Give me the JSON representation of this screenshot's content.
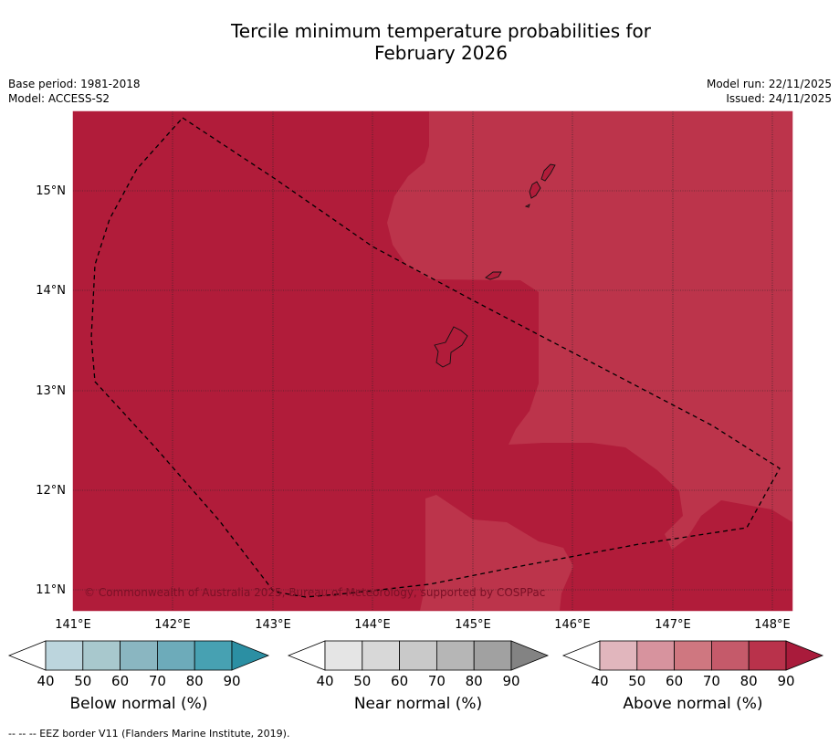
{
  "title": {
    "line1": "Tercile minimum temperature probabilities for",
    "line2": "February 2026"
  },
  "meta": {
    "base_period": "Base period: 1981-2018",
    "model": "Model: ACCESS-S2",
    "model_run": "Model run: 22/11/2025",
    "issued": "Issued: 24/11/2025"
  },
  "map": {
    "lon_ticks": [
      "141°E",
      "142°E",
      "143°E",
      "144°E",
      "145°E",
      "146°E",
      "147°E",
      "148°E"
    ],
    "lat_ticks": [
      "15°N",
      "14°N",
      "13°N",
      "12°N",
      "11°N"
    ],
    "copyright": "© Commonwealth of Australia 2025, Bureau of Meteorology, supported by COSPPac",
    "fill_colors": {
      "dark": "#b11c3a",
      "light": "#bc344b"
    }
  },
  "legends": [
    {
      "label": "Below normal (%)",
      "ticks": [
        "40",
        "50",
        "60",
        "70",
        "80",
        "90"
      ],
      "colors": [
        "#ffffff",
        "#bcd5dd",
        "#a8c8cd",
        "#8ab6c1",
        "#6dabba",
        "#47a1b2",
        "#2b8fa3"
      ]
    },
    {
      "label": "Near normal (%)",
      "ticks": [
        "40",
        "50",
        "60",
        "70",
        "80",
        "90"
      ],
      "colors": [
        "#ffffff",
        "#e5e5e5",
        "#d8d8d8",
        "#c9c9c9",
        "#b6b6b6",
        "#a1a1a1",
        "#838383"
      ]
    },
    {
      "label": "Above normal (%)",
      "ticks": [
        "40",
        "50",
        "60",
        "70",
        "80",
        "90"
      ],
      "colors": [
        "#ffffff",
        "#e1b6bd",
        "#d7939e",
        "#cf7780",
        "#c55a6a",
        "#b9324b",
        "#a91b3b"
      ]
    }
  ],
  "footnote": "-- -- -- EEZ border V11 (Flanders Marine Institute, 2019)."
}
